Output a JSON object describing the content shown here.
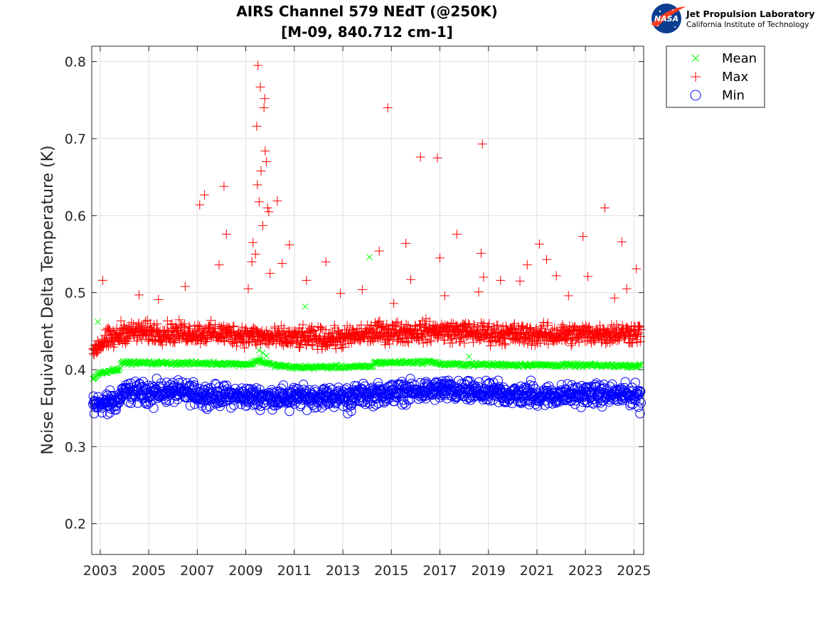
{
  "logo": {
    "badge_text": "NASA",
    "title": "Jet Propulsion Laboratory",
    "subtitle": "California Institute of Technology"
  },
  "chart_data": {
    "type": "scatter",
    "title": "AIRS Channel 579 NEdT (@250K)",
    "subtitle": "[M-09, 840.712 cm-1]",
    "xlabel": "",
    "ylabel": "Noise Equivalent Delta Temperature (K)",
    "xlim": [
      2002.65,
      2025.4
    ],
    "ylim": [
      0.16,
      0.82
    ],
    "x_ticks": [
      2003,
      2005,
      2007,
      2009,
      2011,
      2013,
      2015,
      2017,
      2019,
      2021,
      2023,
      2025
    ],
    "x_tick_labels": [
      "2003",
      "2005",
      "2007",
      "2009",
      "2011",
      "2013",
      "2015",
      "2017",
      "2019",
      "2021",
      "2023",
      "2025"
    ],
    "y_ticks": [
      0.2,
      0.3,
      0.4,
      0.5,
      0.6,
      0.7,
      0.8
    ],
    "y_tick_labels": [
      "0.2",
      "0.3",
      "0.4",
      "0.5",
      "0.6",
      "0.7",
      "0.8"
    ],
    "grid": true,
    "legend_position": "outside-top-right",
    "series": [
      {
        "name": "Mean",
        "marker": "x",
        "color": "#00ff00",
        "baseline": [
          [
            2002.7,
            0.388
          ],
          [
            2003.0,
            0.396
          ],
          [
            2003.8,
            0.401
          ],
          [
            2003.85,
            0.409
          ],
          [
            2007.9,
            0.408
          ],
          [
            2009.2,
            0.407
          ],
          [
            2009.5,
            0.412
          ],
          [
            2010.1,
            0.406
          ],
          [
            2011.0,
            0.403
          ],
          [
            2014.2,
            0.404
          ],
          [
            2014.3,
            0.409
          ],
          [
            2016.8,
            0.41
          ],
          [
            2017.0,
            0.407
          ],
          [
            2025.3,
            0.405
          ]
        ],
        "outliers": [
          [
            2002.9,
            0.462
          ],
          [
            2009.55,
            0.425
          ],
          [
            2009.7,
            0.422
          ],
          [
            2009.85,
            0.418
          ],
          [
            2009.6,
            0.415
          ],
          [
            2011.45,
            0.482
          ],
          [
            2014.1,
            0.546
          ],
          [
            2018.2,
            0.417
          ],
          [
            2008.1,
            0.409
          ]
        ]
      },
      {
        "name": "Max",
        "marker": "+",
        "color": "#ff0000",
        "baseline": [
          [
            2002.7,
            0.426
          ],
          [
            2003.2,
            0.438
          ],
          [
            2003.8,
            0.443
          ],
          [
            2003.85,
            0.449
          ],
          [
            2008.0,
            0.447
          ],
          [
            2009.5,
            0.443
          ],
          [
            2010.2,
            0.441
          ],
          [
            2013.0,
            0.441
          ],
          [
            2014.3,
            0.448
          ],
          [
            2017.0,
            0.45
          ],
          [
            2019.0,
            0.447
          ],
          [
            2021.0,
            0.445
          ],
          [
            2025.3,
            0.448
          ]
        ],
        "outliers": [
          [
            2003.1,
            0.516
          ],
          [
            2004.6,
            0.497
          ],
          [
            2005.4,
            0.491
          ],
          [
            2006.5,
            0.508
          ],
          [
            2007.1,
            0.614
          ],
          [
            2007.3,
            0.627
          ],
          [
            2007.9,
            0.536
          ],
          [
            2008.1,
            0.638
          ],
          [
            2008.2,
            0.576
          ],
          [
            2009.1,
            0.505
          ],
          [
            2009.25,
            0.54
          ],
          [
            2009.3,
            0.565
          ],
          [
            2009.4,
            0.55
          ],
          [
            2009.45,
            0.716
          ],
          [
            2009.48,
            0.64
          ],
          [
            2009.5,
            0.795
          ],
          [
            2009.55,
            0.618
          ],
          [
            2009.6,
            0.767
          ],
          [
            2009.63,
            0.658
          ],
          [
            2009.7,
            0.587
          ],
          [
            2009.75,
            0.74
          ],
          [
            2009.78,
            0.752
          ],
          [
            2009.8,
            0.684
          ],
          [
            2009.85,
            0.67
          ],
          [
            2009.9,
            0.61
          ],
          [
            2009.95,
            0.605
          ],
          [
            2010.0,
            0.525
          ],
          [
            2010.3,
            0.619
          ],
          [
            2010.5,
            0.538
          ],
          [
            2010.8,
            0.562
          ],
          [
            2011.5,
            0.516
          ],
          [
            2012.3,
            0.54
          ],
          [
            2012.9,
            0.499
          ],
          [
            2013.8,
            0.504
          ],
          [
            2014.5,
            0.554
          ],
          [
            2014.85,
            0.74
          ],
          [
            2015.1,
            0.486
          ],
          [
            2015.6,
            0.564
          ],
          [
            2015.8,
            0.517
          ],
          [
            2016.2,
            0.676
          ],
          [
            2016.9,
            0.675
          ],
          [
            2017.0,
            0.545
          ],
          [
            2017.2,
            0.496
          ],
          [
            2017.7,
            0.576
          ],
          [
            2018.6,
            0.501
          ],
          [
            2018.7,
            0.551
          ],
          [
            2018.75,
            0.693
          ],
          [
            2018.8,
            0.52
          ],
          [
            2019.5,
            0.516
          ],
          [
            2020.3,
            0.515
          ],
          [
            2020.6,
            0.536
          ],
          [
            2021.1,
            0.563
          ],
          [
            2021.4,
            0.543
          ],
          [
            2021.8,
            0.522
          ],
          [
            2022.3,
            0.496
          ],
          [
            2022.9,
            0.573
          ],
          [
            2023.1,
            0.521
          ],
          [
            2023.8,
            0.61
          ],
          [
            2024.2,
            0.493
          ],
          [
            2024.5,
            0.566
          ],
          [
            2024.7,
            0.505
          ],
          [
            2025.1,
            0.531
          ]
        ]
      },
      {
        "name": "Min",
        "marker": "o",
        "color": "#0000ff",
        "baseline": [
          [
            2002.7,
            0.354
          ],
          [
            2003.3,
            0.358
          ],
          [
            2003.8,
            0.36
          ],
          [
            2003.85,
            0.37
          ],
          [
            2006.0,
            0.371
          ],
          [
            2008.0,
            0.366
          ],
          [
            2010.0,
            0.364
          ],
          [
            2013.0,
            0.365
          ],
          [
            2015.0,
            0.37
          ],
          [
            2017.0,
            0.373
          ],
          [
            2019.0,
            0.369
          ],
          [
            2021.0,
            0.366
          ],
          [
            2023.0,
            0.368
          ],
          [
            2025.3,
            0.367
          ]
        ],
        "outliers": [
          [
            2002.75,
            0.343
          ],
          [
            2003.3,
            0.342
          ],
          [
            2003.4,
            0.344
          ],
          [
            2003.6,
            0.348
          ],
          [
            2005.2,
            0.35
          ],
          [
            2007.2,
            0.353
          ],
          [
            2010.8,
            0.346
          ],
          [
            2013.2,
            0.343
          ],
          [
            2013.35,
            0.346
          ],
          [
            2017.1,
            0.385
          ],
          [
            2019.4,
            0.386
          ],
          [
            2020.75,
            0.386
          ],
          [
            2025.25,
            0.343
          ]
        ]
      }
    ]
  }
}
